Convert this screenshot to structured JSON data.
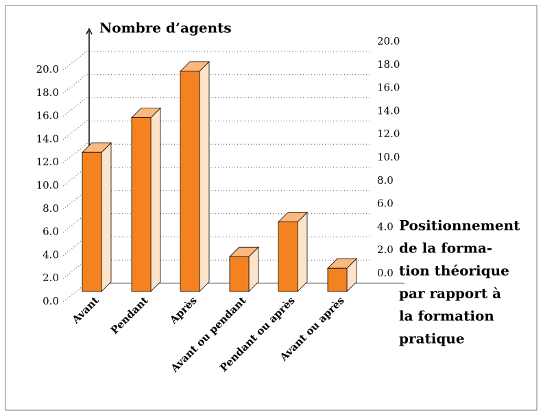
{
  "chart_data": {
    "type": "bar3d",
    "ylabel": "Nombre d’agents",
    "xlabel": [
      "Positionnement",
      "de la forma-",
      "tion théorique",
      "par rapport à",
      "la formation",
      "pratique"
    ],
    "categories": [
      "Avant",
      "Pendant",
      "Après",
      "Avant ou pendant",
      "Pendant ou après",
      "Avant ou après"
    ],
    "values": [
      12,
      15,
      19,
      3,
      6,
      2
    ],
    "color": "#f58220",
    "side_color": "#fde3c8",
    "top_color": "#fbb97f",
    "ylim": [
      0,
      20
    ],
    "yticks": [
      {
        "value": 0,
        "label": "0.0"
      },
      {
        "value": 2,
        "label": "2.0"
      },
      {
        "value": 4,
        "label": "4.0"
      },
      {
        "value": 6,
        "label": "6.0"
      },
      {
        "value": 8,
        "label": "8.0"
      },
      {
        "value": 10,
        "label": "10.0"
      },
      {
        "value": 12,
        "label": "12.0"
      },
      {
        "value": 14,
        "label": "14.0"
      },
      {
        "value": 16,
        "label": "16.0"
      },
      {
        "value": 18,
        "label": "18.0"
      },
      {
        "value": 20,
        "label": "20.0"
      }
    ],
    "y2lim": [
      0,
      20
    ],
    "y2ticks": [
      {
        "value": 0,
        "label": "0.0"
      },
      {
        "value": 2,
        "label": "2.0"
      },
      {
        "value": 4,
        "label": "4.0"
      },
      {
        "value": 6,
        "label": "6.0"
      },
      {
        "value": 8,
        "label": "8.0"
      },
      {
        "value": 10,
        "label": "10.0"
      },
      {
        "value": 12,
        "label": "12.0"
      },
      {
        "value": 14,
        "label": "14.0"
      },
      {
        "value": 16,
        "label": "16.0"
      },
      {
        "value": 18,
        "label": "18.0"
      },
      {
        "value": 20,
        "label": "20.0"
      }
    ],
    "grid": true
  }
}
